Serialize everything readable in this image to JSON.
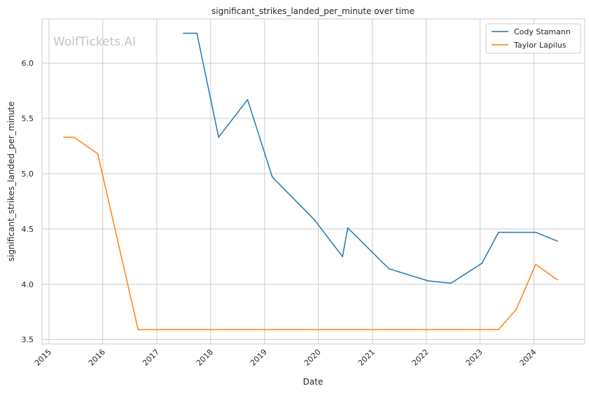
{
  "chart_data": {
    "type": "line",
    "title": "significant_strikes_landed_per_minute over time",
    "xlabel": "Date",
    "ylabel": "significant_strikes_landed_per_minute",
    "watermark": "WolfTickets.AI",
    "xlim": [
      "2014-11-15",
      "2024-12-10"
    ],
    "ylim": [
      3.46,
      6.4
    ],
    "x_ticks": [
      "2015",
      "2016",
      "2017",
      "2018",
      "2019",
      "2020",
      "2021",
      "2022",
      "2023",
      "2024"
    ],
    "y_ticks": [
      3.5,
      4.0,
      4.5,
      5.0,
      5.5,
      6.0
    ],
    "y_tick_labels": [
      "3.5",
      "4.0",
      "4.5",
      "5.0",
      "5.5",
      "6.0"
    ],
    "grid": true,
    "legend_position": "top-right",
    "series": [
      {
        "name": "Cody Stamann",
        "color": "#1f77b4",
        "points": [
          {
            "x": "2017-07-01",
            "y": 6.27
          },
          {
            "x": "2017-09-30",
            "y": 6.27
          },
          {
            "x": "2018-02-24",
            "y": 5.33
          },
          {
            "x": "2018-09-08",
            "y": 5.67
          },
          {
            "x": "2019-02-23",
            "y": 4.97
          },
          {
            "x": "2019-12-07",
            "y": 4.58
          },
          {
            "x": "2020-06-13",
            "y": 4.25
          },
          {
            "x": "2020-07-18",
            "y": 4.51
          },
          {
            "x": "2021-04-24",
            "y": 4.14
          },
          {
            "x": "2022-01-15",
            "y": 4.03
          },
          {
            "x": "2022-06-18",
            "y": 4.01
          },
          {
            "x": "2023-01-14",
            "y": 4.19
          },
          {
            "x": "2023-05-06",
            "y": 4.47
          },
          {
            "x": "2024-01-13",
            "y": 4.47
          },
          {
            "x": "2024-06-08",
            "y": 4.39
          }
        ]
      },
      {
        "name": "Taylor Lapilus",
        "color": "#ff7f0e",
        "points": [
          {
            "x": "2015-04-11",
            "y": 5.33
          },
          {
            "x": "2015-06-20",
            "y": 5.33
          },
          {
            "x": "2015-11-28",
            "y": 5.18
          },
          {
            "x": "2016-08-27",
            "y": 3.59
          },
          {
            "x": "2023-05-06",
            "y": 3.59
          },
          {
            "x": "2023-09-02",
            "y": 3.77
          },
          {
            "x": "2024-01-13",
            "y": 4.18
          },
          {
            "x": "2024-06-08",
            "y": 4.04
          }
        ]
      }
    ]
  }
}
